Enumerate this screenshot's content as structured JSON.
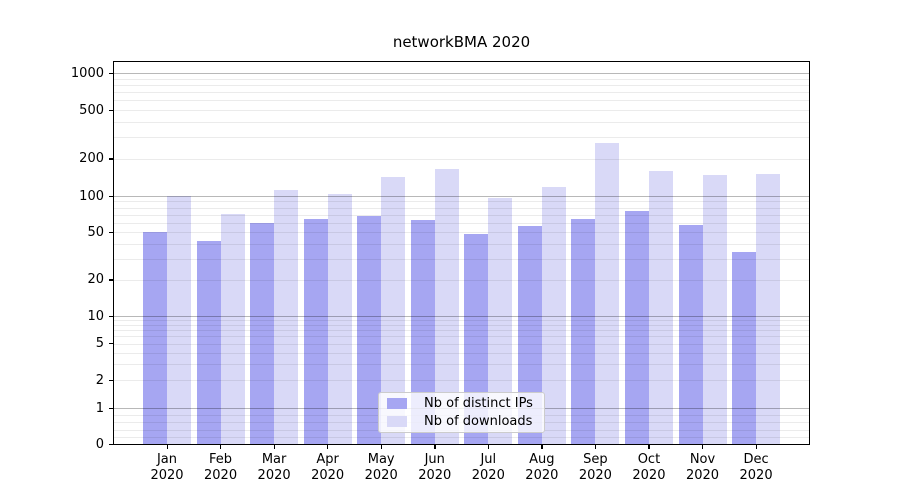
{
  "title": "networkBMA 2020",
  "chart_data": {
    "type": "bar",
    "title": "networkBMA 2020",
    "categories": [
      "Jan",
      "Feb",
      "Mar",
      "Apr",
      "May",
      "Jun",
      "Jul",
      "Aug",
      "Sep",
      "Oct",
      "Nov",
      "Dec"
    ],
    "x_tick_year": "2020",
    "series": [
      {
        "name": "Nb of distinct IPs",
        "color": "#a6a6f2",
        "values": [
          50,
          42,
          60,
          64,
          68,
          63,
          48,
          56,
          64,
          75,
          57,
          34
        ]
      },
      {
        "name": "Nb of downloads",
        "color": "#d9d9f7",
        "values": [
          100,
          71,
          112,
          103,
          142,
          166,
          96,
          118,
          270,
          160,
          148,
          150
        ]
      }
    ],
    "xlabel": "",
    "ylabel": "",
    "yscale": "symlog",
    "y_ticks": [
      1000,
      500,
      200,
      100,
      50,
      20,
      10,
      5,
      2,
      1,
      0
    ],
    "ylim": [
      0,
      1250
    ],
    "grid": "both",
    "legend_position": "lower center"
  }
}
